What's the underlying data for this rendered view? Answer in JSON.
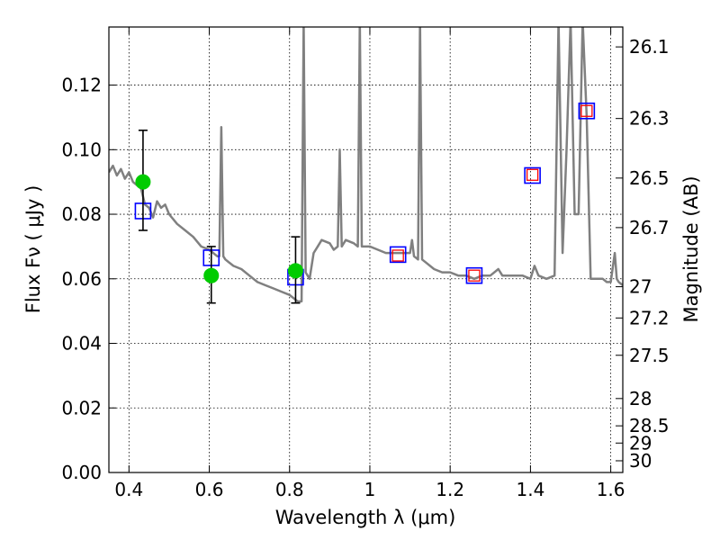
{
  "chart_data": {
    "type": "scatter",
    "xlabel": "Wavelength  λ (μm)",
    "ylabel": "Flux  Fν  ( μJy )",
    "y2label": "Magnitude (AB)",
    "xlim": [
      0.35,
      1.63
    ],
    "ylim": [
      0.0,
      0.138
    ],
    "grid": true,
    "colors": {
      "model_line": "#808080",
      "model_square": "#0000ff",
      "synthetic_square": "#ff0000",
      "observed": "#00cc00",
      "errorbar": "#000000"
    },
    "x_ticks": [
      {
        "value": 0.4,
        "label": "0.4"
      },
      {
        "value": 0.6,
        "label": "0.6"
      },
      {
        "value": 0.8,
        "label": "0.8"
      },
      {
        "value": 1.0,
        "label": "1"
      },
      {
        "value": 1.2,
        "label": "1.2"
      },
      {
        "value": 1.4,
        "label": "1.4"
      },
      {
        "value": 1.6,
        "label": "1.6"
      }
    ],
    "y_ticks": [
      {
        "value": 0.0,
        "label": "0.00"
      },
      {
        "value": 0.02,
        "label": "0.02"
      },
      {
        "value": 0.04,
        "label": "0.04"
      },
      {
        "value": 0.06,
        "label": "0.06"
      },
      {
        "value": 0.08,
        "label": "0.08"
      },
      {
        "value": 0.1,
        "label": "0.10"
      },
      {
        "value": 0.12,
        "label": "0.12"
      }
    ],
    "mag_ticks": [
      {
        "mag": 26.1,
        "label": "26.1"
      },
      {
        "mag": 26.3,
        "label": "26.3"
      },
      {
        "mag": 26.5,
        "label": "26.5"
      },
      {
        "mag": 26.7,
        "label": "26.7"
      },
      {
        "mag": 27.0,
        "label": "27"
      },
      {
        "mag": 27.2,
        "label": "27.2"
      },
      {
        "mag": 27.5,
        "label": "27.5"
      },
      {
        "mag": 28.0,
        "label": "28"
      },
      {
        "mag": 28.5,
        "label": "28.5"
      },
      {
        "mag": 29.0,
        "label": "29"
      },
      {
        "mag": 30.0,
        "label": "30"
      }
    ],
    "series": [
      {
        "kind": "line",
        "points": [
          [
            0.35,
            0.093
          ],
          [
            0.36,
            0.095
          ],
          [
            0.37,
            0.092
          ],
          [
            0.38,
            0.094
          ],
          [
            0.39,
            0.091
          ],
          [
            0.4,
            0.093
          ],
          [
            0.41,
            0.09
          ],
          [
            0.42,
            0.089
          ],
          [
            0.43,
            0.088
          ],
          [
            0.44,
            0.083
          ],
          [
            0.45,
            0.082
          ],
          [
            0.46,
            0.079
          ],
          [
            0.47,
            0.084
          ],
          [
            0.48,
            0.082
          ],
          [
            0.49,
            0.083
          ],
          [
            0.5,
            0.08
          ],
          [
            0.52,
            0.077
          ],
          [
            0.54,
            0.075
          ],
          [
            0.56,
            0.073
          ],
          [
            0.58,
            0.07
          ],
          [
            0.6,
            0.069
          ],
          [
            0.62,
            0.067
          ],
          [
            0.625,
            0.067
          ],
          [
            0.63,
            0.107
          ],
          [
            0.635,
            0.067
          ],
          [
            0.64,
            0.066
          ],
          [
            0.66,
            0.064
          ],
          [
            0.68,
            0.063
          ],
          [
            0.7,
            0.061
          ],
          [
            0.72,
            0.059
          ],
          [
            0.74,
            0.058
          ],
          [
            0.76,
            0.057
          ],
          [
            0.78,
            0.056
          ],
          [
            0.8,
            0.055
          ],
          [
            0.82,
            0.053
          ],
          [
            0.83,
            0.053
          ],
          [
            0.835,
            0.14
          ],
          [
            0.84,
            0.062
          ],
          [
            0.85,
            0.06
          ],
          [
            0.86,
            0.068
          ],
          [
            0.87,
            0.07
          ],
          [
            0.88,
            0.072
          ],
          [
            0.9,
            0.071
          ],
          [
            0.91,
            0.069
          ],
          [
            0.92,
            0.07
          ],
          [
            0.925,
            0.1
          ],
          [
            0.93,
            0.07
          ],
          [
            0.94,
            0.072
          ],
          [
            0.96,
            0.071
          ],
          [
            0.97,
            0.07
          ],
          [
            0.975,
            0.14
          ],
          [
            0.98,
            0.07
          ],
          [
            1.0,
            0.07
          ],
          [
            1.02,
            0.069
          ],
          [
            1.04,
            0.068
          ],
          [
            1.06,
            0.068
          ],
          [
            1.08,
            0.068
          ],
          [
            1.1,
            0.068
          ],
          [
            1.105,
            0.072
          ],
          [
            1.11,
            0.067
          ],
          [
            1.12,
            0.066
          ],
          [
            1.125,
            0.14
          ],
          [
            1.13,
            0.066
          ],
          [
            1.14,
            0.065
          ],
          [
            1.16,
            0.063
          ],
          [
            1.18,
            0.062
          ],
          [
            1.2,
            0.062
          ],
          [
            1.22,
            0.061
          ],
          [
            1.24,
            0.061
          ],
          [
            1.26,
            0.06
          ],
          [
            1.28,
            0.061
          ],
          [
            1.3,
            0.061
          ],
          [
            1.32,
            0.063
          ],
          [
            1.33,
            0.061
          ],
          [
            1.35,
            0.061
          ],
          [
            1.38,
            0.061
          ],
          [
            1.4,
            0.06
          ],
          [
            1.41,
            0.064
          ],
          [
            1.42,
            0.061
          ],
          [
            1.44,
            0.06
          ],
          [
            1.46,
            0.061
          ],
          [
            1.47,
            0.14
          ],
          [
            1.48,
            0.068
          ],
          [
            1.49,
            0.1
          ],
          [
            1.5,
            0.14
          ],
          [
            1.51,
            0.08
          ],
          [
            1.52,
            0.08
          ],
          [
            1.53,
            0.14
          ],
          [
            1.54,
            0.11
          ],
          [
            1.55,
            0.06
          ],
          [
            1.58,
            0.06
          ],
          [
            1.59,
            0.059
          ],
          [
            1.6,
            0.059
          ],
          [
            1.61,
            0.068
          ],
          [
            1.615,
            0.06
          ],
          [
            1.62,
            0.059
          ],
          [
            1.63,
            0.058
          ]
        ]
      },
      {
        "kind": "squares",
        "points": [
          [
            0.435,
            0.081
          ],
          [
            0.605,
            0.0665
          ],
          [
            0.815,
            0.0605
          ],
          [
            1.07,
            0.0675
          ],
          [
            1.26,
            0.061
          ],
          [
            1.405,
            0.092
          ],
          [
            1.54,
            0.112
          ]
        ]
      },
      {
        "kind": "small-squares",
        "points": [
          [
            1.07,
            0.0672
          ],
          [
            1.26,
            0.061
          ],
          [
            1.405,
            0.0922
          ],
          [
            1.54,
            0.112
          ]
        ]
      },
      {
        "kind": "points",
        "points": [
          {
            "x": 0.435,
            "y": 0.09,
            "lo": 0.075,
            "hi": 0.106
          },
          {
            "x": 0.605,
            "y": 0.061,
            "lo": 0.0525,
            "hi": 0.07
          },
          {
            "x": 0.815,
            "y": 0.0625,
            "lo": 0.0525,
            "hi": 0.073
          }
        ]
      }
    ]
  }
}
